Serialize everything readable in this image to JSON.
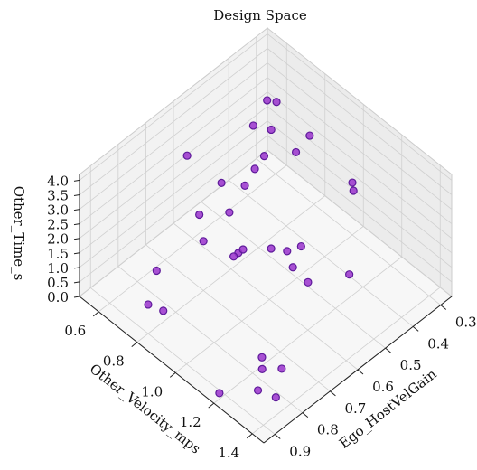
{
  "chart_data": {
    "type": "scatter3d",
    "title": "Design Space",
    "xlabel": "Ego_HostVelGain",
    "ylabel": "Other_Velocity_mps",
    "zlabel": "Other_Time_s",
    "color": "#9a32cd",
    "edgecolor": "#5e1a9a",
    "grid": true,
    "xlim": [
      0.26,
      0.94
    ],
    "ylim": [
      0.5,
      1.46
    ],
    "zlim": [
      0,
      4.2
    ],
    "xticks": [
      0.3,
      0.4,
      0.5,
      0.6,
      0.7,
      0.8,
      0.9
    ],
    "yticks": [
      0.6,
      0.8,
      {
        "value": 1,
        "label": "1.0"
      },
      1.2,
      1.4
    ],
    "zticks": [
      {
        "value": 0,
        "label": "0.0"
      },
      0.5,
      {
        "value": 1,
        "label": "1.0"
      },
      1.5,
      {
        "value": 2,
        "label": "2.0"
      },
      2.5,
      {
        "value": 3,
        "label": "3.0"
      },
      3.5,
      {
        "value": 4,
        "label": "4.0"
      }
    ],
    "x": [
      0.65,
      0.66,
      0.64,
      0.58,
      0.55,
      0.52,
      0.55,
      0.53,
      0.4,
      0.38,
      0.42,
      0.45,
      0.48,
      0.35,
      0.4,
      0.5,
      0.55,
      0.6,
      0.62,
      0.3,
      0.31,
      0.45,
      0.8,
      0.88,
      0.9,
      0.85,
      0.8,
      0.78,
      0.75,
      0.82,
      0.92,
      0.7,
      0.62,
      0.68
    ],
    "y": [
      0.91,
      0.9,
      0.92,
      0.98,
      1.02,
      1.05,
      1.05,
      1.1,
      0.7,
      0.72,
      0.75,
      0.7,
      0.8,
      0.85,
      0.85,
      0.78,
      0.8,
      0.75,
      0.82,
      1.0,
      1.02,
      1.2,
      0.7,
      0.85,
      0.8,
      1.3,
      1.25,
      1.22,
      1.28,
      1.35,
      1.2,
      0.8,
      0.6,
      0.75
    ],
    "z": [
      1.5,
      1.4,
      1.6,
      1.5,
      1.4,
      1.5,
      1.0,
      0.6,
      3.8,
      3.7,
      3.2,
      3.3,
      3.0,
      3.0,
      2.8,
      2.6,
      2.5,
      2.7,
      2.2,
      1.8,
      1.7,
      0.8,
      0.9,
      0.9,
      1.0,
      0.3,
      0.4,
      0.5,
      0.2,
      0.1,
      0.2,
      1.7,
      3.0,
      2.2
    ]
  }
}
